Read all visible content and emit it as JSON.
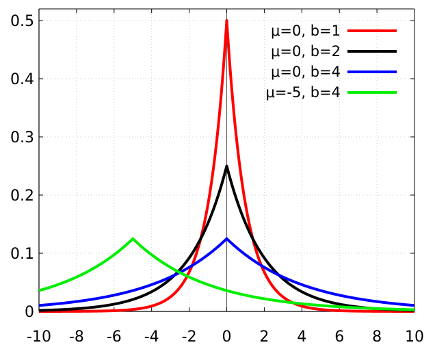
{
  "chart_data": {
    "type": "line",
    "title": "",
    "xlabel": "",
    "ylabel": "",
    "xlim": [
      -10,
      10
    ],
    "ylim": [
      0,
      0.52
    ],
    "x_ticks": [
      -10,
      -8,
      -6,
      -4,
      -2,
      0,
      2,
      4,
      6,
      8,
      10
    ],
    "x_tick_labels": [
      "-10",
      "-8",
      "-6",
      "-4",
      "-2",
      "0",
      "2",
      "4",
      "6",
      "8",
      "10"
    ],
    "y_ticks": [
      0,
      0.1,
      0.2,
      0.3,
      0.4,
      0.5
    ],
    "y_tick_labels": [
      "0",
      "0.1",
      "0.2",
      "0.3",
      "0.4",
      "0.5"
    ],
    "grid": true,
    "vertical_line_at_x": 0,
    "legend_position": "top-right",
    "series": [
      {
        "name": "μ=0, b=1",
        "color": "#ff0000",
        "mu": 0,
        "b": 1
      },
      {
        "name": "μ=0, b=2",
        "color": "#000000",
        "mu": 0,
        "b": 2
      },
      {
        "name": "μ=0, b=4",
        "color": "#0000ff",
        "mu": 0,
        "b": 4
      },
      {
        "name": "μ=-5, b=4",
        "color": "#00ee00",
        "mu": -5,
        "b": 4
      }
    ]
  }
}
